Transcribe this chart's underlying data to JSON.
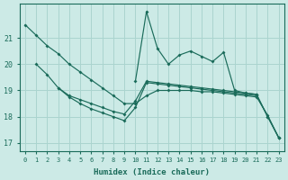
{
  "xlabel": "Humidex (Indice chaleur)",
  "bg_color": "#cceae6",
  "grid_color": "#aad4cf",
  "line_color": "#1a6b5a",
  "xlim": [
    -0.5,
    23.5
  ],
  "ylim": [
    16.7,
    22.3
  ],
  "yticks": [
    17,
    18,
    19,
    20,
    21
  ],
  "xticks": [
    0,
    1,
    2,
    3,
    4,
    5,
    6,
    7,
    8,
    9,
    10,
    11,
    12,
    13,
    14,
    15,
    16,
    17,
    18,
    19,
    20,
    21,
    22,
    23
  ],
  "line1_x": [
    0,
    1,
    2,
    3,
    4,
    5,
    6,
    7,
    8,
    9,
    10,
    11,
    12,
    13,
    14,
    15,
    16,
    17,
    18,
    19,
    20,
    21,
    22,
    23
  ],
  "line1_y": [
    21.5,
    21.1,
    20.7,
    20.4,
    20.0,
    19.7,
    19.4,
    19.1,
    18.8,
    18.5,
    18.5,
    18.8,
    19.0,
    19.0,
    19.0,
    19.0,
    18.95,
    18.95,
    18.9,
    18.85,
    18.8,
    18.75,
    18.05,
    17.2
  ],
  "line2_x": [
    1,
    2,
    3,
    4,
    5,
    6,
    7,
    8,
    9,
    10,
    11,
    12,
    13,
    14,
    15,
    16,
    17,
    18,
    19,
    20,
    21
  ],
  "line2_y": [
    20.0,
    19.6,
    19.1,
    18.8,
    18.65,
    18.5,
    18.35,
    18.2,
    18.1,
    18.6,
    19.35,
    19.3,
    19.25,
    19.2,
    19.15,
    19.1,
    19.05,
    19.0,
    18.95,
    18.9,
    18.85
  ],
  "line3_x": [
    3,
    4,
    5,
    6,
    7,
    8,
    9,
    10,
    11,
    12,
    13,
    14,
    15,
    16,
    17,
    18,
    19,
    20,
    21,
    22,
    23
  ],
  "line3_y": [
    19.1,
    18.75,
    18.5,
    18.3,
    18.15,
    18.0,
    17.85,
    18.35,
    19.3,
    19.25,
    19.2,
    19.15,
    19.1,
    19.05,
    19.0,
    18.95,
    18.9,
    18.85,
    18.8,
    18.0,
    17.2
  ],
  "line4_x": [
    10,
    11,
    12,
    13,
    14,
    15,
    16,
    17,
    18,
    19,
    20,
    21,
    22,
    23
  ],
  "line4_y": [
    19.35,
    22.0,
    20.6,
    20.0,
    20.35,
    20.5,
    20.3,
    20.1,
    20.45,
    19.0,
    18.9,
    18.85,
    18.0,
    17.2
  ]
}
